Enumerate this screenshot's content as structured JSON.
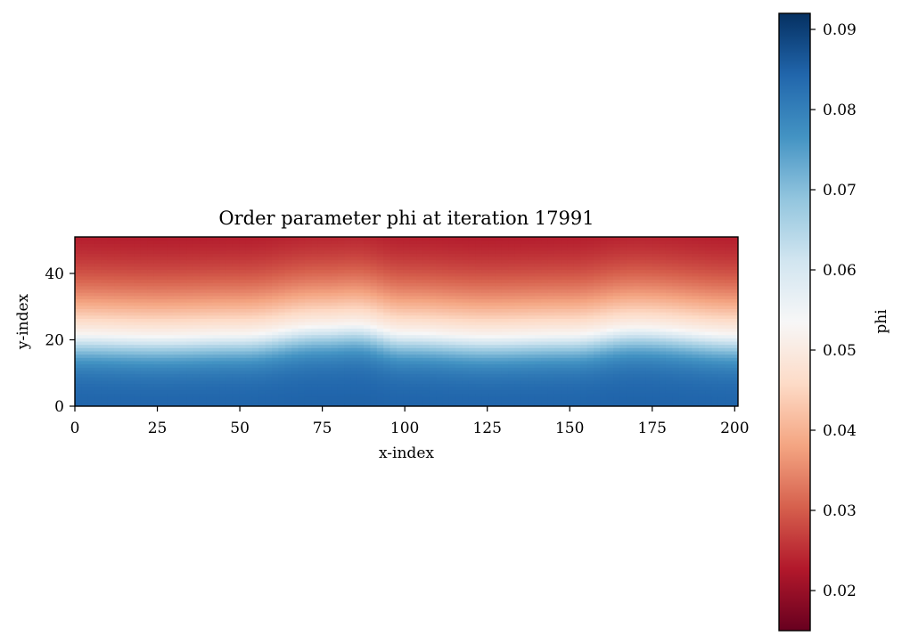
{
  "chart_data": {
    "type": "heatmap",
    "title": "Order parameter phi at iteration 17991",
    "xlabel": "x-index",
    "ylabel": "y-index",
    "xlim": [
      0,
      201
    ],
    "ylim": [
      0,
      51
    ],
    "x_ticks": [
      0,
      25,
      50,
      75,
      100,
      125,
      150,
      175,
      200
    ],
    "x_tick_labels": [
      "0",
      "25",
      "50",
      "75",
      "100",
      "125",
      "150",
      "175",
      "200"
    ],
    "y_ticks": [
      0,
      20,
      40
    ],
    "y_tick_labels": [
      "0",
      "20",
      "40"
    ],
    "colormap": "RdBu",
    "colorbar": {
      "label": "phi",
      "range": [
        0.015,
        0.092
      ],
      "ticks": [
        0.02,
        0.03,
        0.04,
        0.05,
        0.06,
        0.07,
        0.08,
        0.09
      ],
      "tick_labels": [
        "0.02",
        "0.03",
        "0.04",
        "0.05",
        "0.06",
        "0.07",
        "0.08",
        "0.09"
      ],
      "placement": "right"
    },
    "field": {
      "description_of_values": "phi ≈ 0.085 near y=0, ≈ 0.083 at y≈15, ≈ 0.06 at interface, ≈ 0.02 near y=51",
      "low_value": 0.02,
      "high_value": 0.085,
      "interface_x": [
        0,
        25,
        50,
        75,
        85,
        100,
        125,
        150,
        170,
        201
      ],
      "interface_y": [
        22,
        21.5,
        22,
        24.5,
        25,
        22.5,
        21.5,
        22,
        24,
        22
      ],
      "interface_width": 5
    }
  }
}
